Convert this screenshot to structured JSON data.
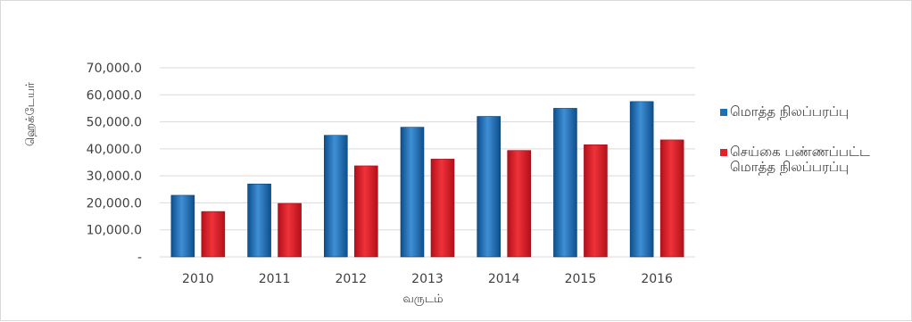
{
  "chart_data": {
    "type": "bar",
    "categories": [
      "2010",
      "2011",
      "2012",
      "2013",
      "2014",
      "2015",
      "2016"
    ],
    "series": [
      {
        "name": "மொத்த நிலப்பரப்பு",
        "color": "#1f6fb5",
        "values": [
          22800,
          27000,
          45000,
          48000,
          52000,
          55000,
          57500
        ]
      },
      {
        "name": "செய்கை பண்ணப்பட்ட\nமொத்த நிலப்பரப்பு",
        "color": "#e1202a",
        "values": [
          16800,
          19800,
          33700,
          36200,
          39400,
          41500,
          43300
        ]
      }
    ],
    "title": "",
    "xlabel": "வருடம்",
    "ylabel": "ஹெக்டேயர்",
    "ylim": [
      0,
      70000
    ],
    "yticks": [
      0,
      10000,
      20000,
      30000,
      40000,
      50000,
      60000,
      70000
    ],
    "ytick_labels": [
      "-",
      "10,000.0",
      "20,000.0",
      "30,000.0",
      "40,000.0",
      "50,000.0",
      "60,000.0",
      "70,000.0"
    ],
    "grid": true,
    "legend_position": "right"
  }
}
